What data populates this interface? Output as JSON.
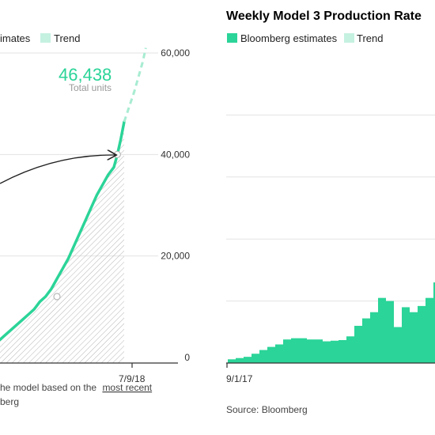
{
  "chart_data": [
    {
      "type": "area",
      "legend": [
        {
          "name": "Bloomberg estimates",
          "color": "#2bd498"
        },
        {
          "name": "Trend",
          "color": "#c5f1e1"
        }
      ],
      "legend_visible_text": [
        "imates",
        "Trend"
      ],
      "ylim": [
        0,
        60000
      ],
      "y_ticks": [
        "60,000",
        "40,000",
        "20,000",
        "0"
      ],
      "x_tick_labels": [
        "7/9/18"
      ],
      "annotation_value": "46,438",
      "annotation_label": "Total units",
      "footnote_text": "he model based on the",
      "footnote_link": "most recent",
      "source_text": "berg",
      "colors": {
        "series": "#2bd498",
        "trend": "#2bd498",
        "hatch": "#b7b7b7",
        "grid": "#e3e3e3"
      },
      "series": [
        {
          "name": "Bloomberg estimates",
          "points": [
            [
              0,
              3500
            ],
            [
              5,
              4500
            ],
            [
              10,
              5500
            ],
            [
              15,
              6500
            ],
            [
              20,
              7500
            ],
            [
              25,
              8500
            ],
            [
              30,
              9500
            ],
            [
              35,
              11000
            ],
            [
              40,
              12000
            ],
            [
              45,
              13500
            ],
            [
              50,
              15500
            ],
            [
              55,
              17500
            ],
            [
              60,
              19500
            ],
            [
              65,
              22000
            ],
            [
              70,
              24500
            ],
            [
              75,
              27000
            ],
            [
              80,
              29500
            ],
            [
              85,
              32000
            ],
            [
              90,
              34000
            ],
            [
              95,
              36000
            ],
            [
              100,
              37500
            ],
            [
              103,
              40000
            ],
            [
              106,
              43000
            ],
            [
              109,
              46438
            ]
          ]
        },
        {
          "name": "Trend",
          "points": [
            [
              109,
              46438
            ],
            [
              118,
              52500
            ],
            [
              125,
              58000
            ],
            [
              128,
              61000
            ]
          ]
        }
      ],
      "markers": [
        [
          50,
          12000
        ],
        [
          103,
          40000
        ]
      ]
    },
    {
      "type": "bar",
      "title": "Weekly Model 3 Production Rate",
      "legend": [
        {
          "name": "Bloomberg estimates",
          "color": "#2bd498"
        },
        {
          "name": "Trend",
          "color": "#c5f1e1"
        }
      ],
      "x_tick_labels": [
        "9/1/17"
      ],
      "ylim": [
        0,
        5000
      ],
      "gridlines": [
        1000,
        2000,
        3000,
        4000
      ],
      "source_text": "Source: Bloomberg",
      "colors": {
        "bar": "#2bd498",
        "grid": "#e3e3e3"
      },
      "values": [
        60,
        80,
        100,
        150,
        210,
        260,
        300,
        380,
        400,
        400,
        380,
        380,
        350,
        360,
        370,
        430,
        600,
        720,
        820,
        1050,
        1000,
        580,
        900,
        820,
        920,
        1050,
        1300
      ]
    }
  ]
}
